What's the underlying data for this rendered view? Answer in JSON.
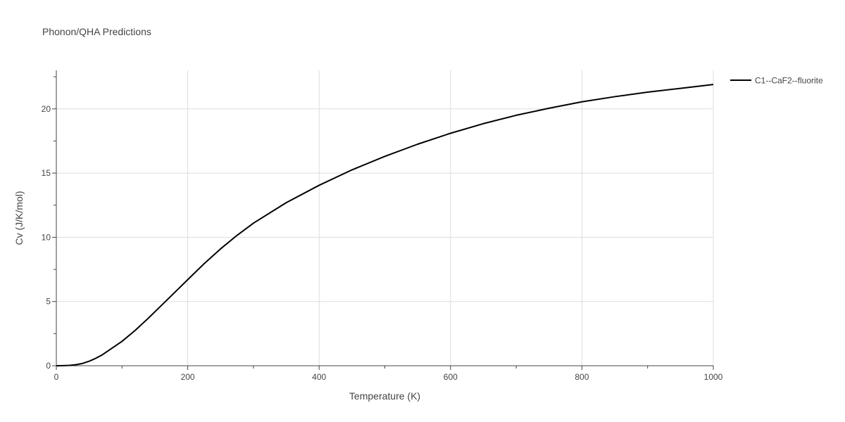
{
  "chart_data": {
    "type": "line",
    "title": "Phonon/QHA Predictions",
    "xlabel": "Temperature (K)",
    "ylabel": "Cv (J/K/mol)",
    "xlim": [
      0,
      1000
    ],
    "ylim": [
      0,
      23
    ],
    "x_ticks": [
      0,
      200,
      400,
      600,
      800,
      1000
    ],
    "y_ticks": [
      0,
      5,
      10,
      15,
      20
    ],
    "grid": true,
    "legend_position": "top-right",
    "series": [
      {
        "name": "C1--CaF2--fluorite",
        "color": "#000000",
        "x": [
          0,
          10,
          20,
          30,
          40,
          50,
          60,
          70,
          80,
          90,
          100,
          120,
          140,
          160,
          180,
          200,
          225,
          250,
          275,
          300,
          350,
          400,
          450,
          500,
          550,
          600,
          650,
          700,
          750,
          800,
          850,
          900,
          950,
          1000
        ],
        "y": [
          0,
          0.01,
          0.03,
          0.08,
          0.18,
          0.35,
          0.58,
          0.85,
          1.2,
          1.55,
          1.9,
          2.75,
          3.7,
          4.7,
          5.7,
          6.7,
          7.95,
          9.1,
          10.15,
          11.1,
          12.7,
          14.05,
          15.25,
          16.3,
          17.25,
          18.1,
          18.85,
          19.5,
          20.05,
          20.55,
          20.95,
          21.3,
          21.6,
          21.9
        ]
      }
    ]
  }
}
